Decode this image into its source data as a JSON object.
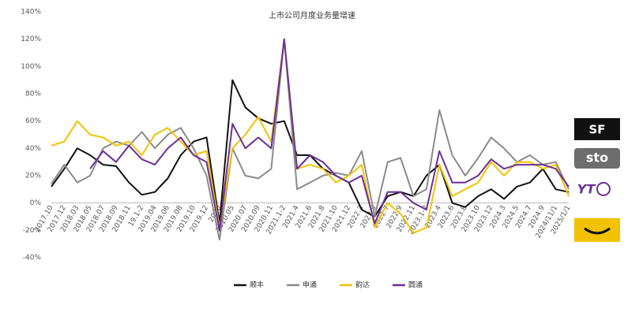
{
  "chart_data": {
    "type": "line",
    "title": "上市公司月度业务量增速",
    "categories": [
      "2017.10",
      "2017.12",
      "2018.03",
      "2018.05",
      "2018.07",
      "2018.09",
      "2018.11",
      "19.1-2",
      "2019.04",
      "2019.06",
      "2019.08",
      "2019.10",
      "2019.12",
      "2020",
      "2020.05",
      "2020.07",
      "2020.09",
      "2020.11",
      "2021.1-2",
      "2021.4",
      "2021.6",
      "2021.8",
      "2021.10",
      "2021.12",
      "2022.3",
      "2022.5",
      "2022.7",
      "2022.9",
      "2022.11",
      "2023.1-2",
      "2023.4",
      "2023.6",
      "2023.8",
      "2023.10",
      "2023.12",
      "2024.3",
      "2024.5",
      "2024.7",
      "2024.9",
      "2024/11/1",
      "2025/1/1"
    ],
    "series": [
      {
        "name": "顺丰",
        "color": "#111111",
        "values": [
          12,
          25,
          40,
          35,
          28,
          27,
          15,
          6,
          8,
          18,
          35,
          45,
          48,
          -15,
          90,
          70,
          62,
          58,
          60,
          35,
          35,
          25,
          20,
          15,
          -5,
          -10,
          5,
          8,
          5,
          20,
          28,
          0,
          -3,
          5,
          10,
          3,
          12,
          15,
          25,
          10,
          8
        ]
      },
      {
        "name": "申通",
        "color": "#8a8a8a",
        "values": [
          14,
          28,
          15,
          20,
          40,
          45,
          42,
          52,
          40,
          50,
          55,
          40,
          20,
          -27,
          40,
          20,
          18,
          25,
          120,
          10,
          15,
          20,
          22,
          20,
          38,
          -10,
          30,
          33,
          5,
          10,
          68,
          35,
          20,
          33,
          48,
          40,
          30,
          35,
          28,
          30,
          10
        ]
      },
      {
        "name": "韵达",
        "color": "#f2c200",
        "values": [
          42,
          45,
          60,
          50,
          48,
          42,
          45,
          35,
          50,
          55,
          45,
          35,
          38,
          -18,
          40,
          50,
          63,
          45,
          120,
          25,
          28,
          25,
          15,
          20,
          28,
          -18,
          0,
          -8,
          -22,
          -18,
          28,
          5,
          10,
          15,
          30,
          20,
          30,
          30,
          25,
          28,
          5
        ]
      },
      {
        "name": "圆通",
        "color": "#6b2f95",
        "values": [
          null,
          null,
          null,
          25,
          38,
          30,
          42,
          32,
          28,
          40,
          48,
          35,
          30,
          -20,
          58,
          40,
          48,
          40,
          120,
          25,
          35,
          30,
          20,
          15,
          20,
          -15,
          8,
          8,
          0,
          -5,
          38,
          15,
          15,
          20,
          32,
          25,
          28,
          28,
          28,
          25,
          12
        ]
      }
    ],
    "ylim": [
      -40,
      140
    ],
    "yticks": [
      {
        "value": -40,
        "label": "-40%"
      },
      {
        "value": -20,
        "label": "-20%"
      },
      {
        "value": 0,
        "label": "0%"
      },
      {
        "value": 20,
        "label": "20%"
      },
      {
        "value": 40,
        "label": "40%"
      },
      {
        "value": 60,
        "label": "60%"
      },
      {
        "value": 80,
        "label": "80%"
      },
      {
        "value": 100,
        "label": "100%"
      },
      {
        "value": 120,
        "label": "120%"
      },
      {
        "value": 140,
        "label": "140%"
      }
    ],
    "grid": false
  },
  "logos": [
    "SF",
    "sto",
    "YT"
  ]
}
